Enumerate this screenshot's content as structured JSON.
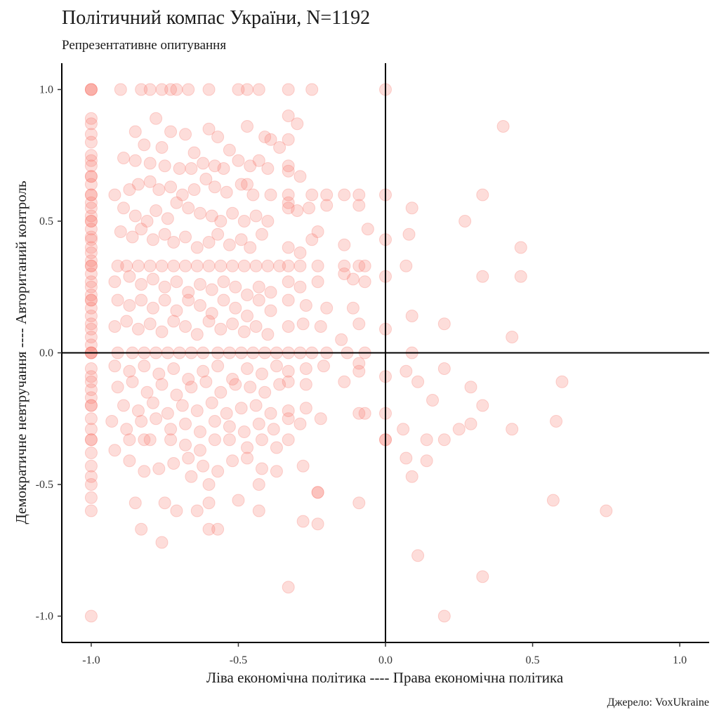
{
  "chart_data": {
    "type": "scatter",
    "title": "Політичний компас України, N=1192",
    "subtitle": "Репрезентативне опитування",
    "xlabel": "Ліва економічна політика ---- Права економічна політика",
    "ylabel": "Демократичне невтручання ---- Автоританий контроль",
    "caption": "Джерело: VoxUkraine",
    "xlim": [
      -1.1,
      1.1
    ],
    "ylim": [
      -1.1,
      1.1
    ],
    "x_ticks": [
      -1.0,
      -0.5,
      0.0,
      0.5,
      1.0
    ],
    "x_tick_labels": [
      "-1.0",
      "-0.5",
      "0.0",
      "0.5",
      "1.0"
    ],
    "y_ticks": [
      -1.0,
      -0.5,
      0.0,
      0.5,
      1.0
    ],
    "y_tick_labels": [
      "-1.0",
      "-0.5",
      "0.0",
      "0.5",
      "1.0"
    ],
    "grid": false,
    "reference_lines": {
      "x": 0,
      "y": 0
    },
    "point_color": "#F8766D",
    "point_opacity": 0.25,
    "points": [
      [
        -1.0,
        1.0
      ],
      [
        -1.0,
        1.0
      ],
      [
        -1.0,
        1.0
      ],
      [
        -1.0,
        0.89
      ],
      [
        -1.0,
        0.87
      ],
      [
        -1.0,
        0.83
      ],
      [
        -1.0,
        0.8
      ],
      [
        -1.0,
        0.75
      ],
      [
        -1.0,
        0.73
      ],
      [
        -1.0,
        0.71
      ],
      [
        -1.0,
        0.67
      ],
      [
        -1.0,
        0.67
      ],
      [
        -1.0,
        0.64
      ],
      [
        -1.0,
        0.6
      ],
      [
        -1.0,
        0.6
      ],
      [
        -1.0,
        0.57
      ],
      [
        -1.0,
        0.55
      ],
      [
        -1.0,
        0.52
      ],
      [
        -1.0,
        0.5
      ],
      [
        -1.0,
        0.5
      ],
      [
        -1.0,
        0.47
      ],
      [
        -1.0,
        0.44
      ],
      [
        -1.0,
        0.43
      ],
      [
        -1.0,
        0.4
      ],
      [
        -1.0,
        0.38
      ],
      [
        -1.0,
        0.35
      ],
      [
        -1.0,
        0.33
      ],
      [
        -1.0,
        0.33
      ],
      [
        -1.0,
        0.3
      ],
      [
        -1.0,
        0.27
      ],
      [
        -1.0,
        0.25
      ],
      [
        -1.0,
        0.22
      ],
      [
        -1.0,
        0.2
      ],
      [
        -1.0,
        0.2
      ],
      [
        -1.0,
        0.17
      ],
      [
        -1.0,
        0.14
      ],
      [
        -1.0,
        0.11
      ],
      [
        -1.0,
        0.09
      ],
      [
        -1.0,
        0.06
      ],
      [
        -1.0,
        0.03
      ],
      [
        -1.0,
        0.0
      ],
      [
        -1.0,
        0.0
      ],
      [
        -1.0,
        0.0
      ],
      [
        -1.0,
        -0.06
      ],
      [
        -1.0,
        -0.09
      ],
      [
        -1.0,
        -0.11
      ],
      [
        -1.0,
        -0.14
      ],
      [
        -1.0,
        -0.17
      ],
      [
        -1.0,
        -0.2
      ],
      [
        -1.0,
        -0.2
      ],
      [
        -1.0,
        -0.25
      ],
      [
        -1.0,
        -0.29
      ],
      [
        -1.0,
        -0.33
      ],
      [
        -1.0,
        -0.33
      ],
      [
        -1.0,
        -0.38
      ],
      [
        -1.0,
        -0.43
      ],
      [
        -1.0,
        -0.47
      ],
      [
        -1.0,
        -0.5
      ],
      [
        -1.0,
        -0.55
      ],
      [
        -1.0,
        -0.6
      ],
      [
        -1.0,
        -1.0
      ],
      [
        -0.9,
        1.0
      ],
      [
        -0.83,
        1.0
      ],
      [
        -0.8,
        1.0
      ],
      [
        -0.76,
        1.0
      ],
      [
        -0.73,
        1.0
      ],
      [
        -0.71,
        1.0
      ],
      [
        -0.67,
        1.0
      ],
      [
        -0.6,
        1.0
      ],
      [
        -0.5,
        1.0
      ],
      [
        -0.47,
        1.0
      ],
      [
        -0.43,
        1.0
      ],
      [
        -0.33,
        1.0
      ],
      [
        -0.25,
        1.0
      ],
      [
        0.0,
        1.0
      ],
      [
        -0.33,
        0.9
      ],
      [
        -0.78,
        0.89
      ],
      [
        -0.3,
        0.87
      ],
      [
        -0.47,
        0.86
      ],
      [
        -0.6,
        0.85
      ],
      [
        -0.85,
        0.84
      ],
      [
        -0.73,
        0.84
      ],
      [
        -0.68,
        0.83
      ],
      [
        -0.57,
        0.82
      ],
      [
        -0.33,
        0.81
      ],
      [
        -0.41,
        0.82
      ],
      [
        -0.39,
        0.81
      ],
      [
        -0.82,
        0.79
      ],
      [
        -0.76,
        0.78
      ],
      [
        -0.65,
        0.76
      ],
      [
        -0.53,
        0.77
      ],
      [
        -0.36,
        0.78
      ],
      [
        0.4,
        0.86
      ],
      [
        -0.89,
        0.74
      ],
      [
        -0.85,
        0.73
      ],
      [
        -0.8,
        0.72
      ],
      [
        -0.75,
        0.71
      ],
      [
        -0.7,
        0.7
      ],
      [
        -0.66,
        0.7
      ],
      [
        -0.62,
        0.72
      ],
      [
        -0.58,
        0.71
      ],
      [
        -0.55,
        0.7
      ],
      [
        -0.5,
        0.73
      ],
      [
        -0.46,
        0.71
      ],
      [
        -0.43,
        0.73
      ],
      [
        -0.4,
        0.7
      ],
      [
        -0.33,
        0.71
      ],
      [
        -0.33,
        0.69
      ],
      [
        -0.29,
        0.67
      ],
      [
        -0.92,
        0.6
      ],
      [
        -0.87,
        0.62
      ],
      [
        -0.84,
        0.64
      ],
      [
        -0.8,
        0.65
      ],
      [
        -0.77,
        0.62
      ],
      [
        -0.73,
        0.63
      ],
      [
        -0.69,
        0.6
      ],
      [
        -0.65,
        0.62
      ],
      [
        -0.61,
        0.66
      ],
      [
        -0.58,
        0.63
      ],
      [
        -0.54,
        0.61
      ],
      [
        -0.49,
        0.64
      ],
      [
        -0.47,
        0.64
      ],
      [
        -0.45,
        0.6
      ],
      [
        -0.39,
        0.6
      ],
      [
        -0.33,
        0.6
      ],
      [
        -0.25,
        0.6
      ],
      [
        -0.2,
        0.6
      ],
      [
        -0.14,
        0.6
      ],
      [
        -0.09,
        0.6
      ],
      [
        0.0,
        0.6
      ],
      [
        0.33,
        0.6
      ],
      [
        -0.89,
        0.55
      ],
      [
        -0.85,
        0.52
      ],
      [
        -0.81,
        0.5
      ],
      [
        -0.78,
        0.54
      ],
      [
        -0.74,
        0.51
      ],
      [
        -0.71,
        0.57
      ],
      [
        -0.67,
        0.55
      ],
      [
        -0.63,
        0.53
      ],
      [
        -0.59,
        0.52
      ],
      [
        -0.56,
        0.5
      ],
      [
        -0.52,
        0.53
      ],
      [
        -0.48,
        0.5
      ],
      [
        -0.44,
        0.52
      ],
      [
        -0.4,
        0.5
      ],
      [
        -0.33,
        0.57
      ],
      [
        -0.33,
        0.55
      ],
      [
        -0.3,
        0.54
      ],
      [
        -0.26,
        0.55
      ],
      [
        -0.2,
        0.56
      ],
      [
        -0.09,
        0.56
      ],
      [
        0.09,
        0.55
      ],
      [
        0.27,
        0.5
      ],
      [
        -0.9,
        0.46
      ],
      [
        -0.86,
        0.44
      ],
      [
        -0.83,
        0.47
      ],
      [
        -0.79,
        0.43
      ],
      [
        -0.75,
        0.45
      ],
      [
        -0.72,
        0.42
      ],
      [
        -0.68,
        0.44
      ],
      [
        -0.64,
        0.4
      ],
      [
        -0.6,
        0.42
      ],
      [
        -0.57,
        0.45
      ],
      [
        -0.53,
        0.41
      ],
      [
        -0.49,
        0.43
      ],
      [
        -0.46,
        0.4
      ],
      [
        -0.42,
        0.45
      ],
      [
        -0.33,
        0.4
      ],
      [
        -0.29,
        0.38
      ],
      [
        -0.25,
        0.43
      ],
      [
        -0.23,
        0.46
      ],
      [
        -0.14,
        0.41
      ],
      [
        -0.06,
        0.47
      ],
      [
        0.0,
        0.43
      ],
      [
        0.08,
        0.45
      ],
      [
        0.46,
        0.4
      ],
      [
        -0.91,
        0.33
      ],
      [
        -0.88,
        0.33
      ],
      [
        -0.84,
        0.33
      ],
      [
        -0.8,
        0.33
      ],
      [
        -0.76,
        0.33
      ],
      [
        -0.72,
        0.33
      ],
      [
        -0.68,
        0.33
      ],
      [
        -0.64,
        0.33
      ],
      [
        -0.6,
        0.33
      ],
      [
        -0.56,
        0.33
      ],
      [
        -0.52,
        0.33
      ],
      [
        -0.48,
        0.33
      ],
      [
        -0.44,
        0.33
      ],
      [
        -0.4,
        0.33
      ],
      [
        -0.36,
        0.33
      ],
      [
        -0.33,
        0.33
      ],
      [
        -0.29,
        0.33
      ],
      [
        -0.23,
        0.33
      ],
      [
        -0.14,
        0.33
      ],
      [
        -0.09,
        0.33
      ],
      [
        -0.07,
        0.33
      ],
      [
        0.07,
        0.33
      ],
      [
        -0.92,
        0.27
      ],
      [
        -0.87,
        0.29
      ],
      [
        -0.83,
        0.26
      ],
      [
        -0.79,
        0.28
      ],
      [
        -0.75,
        0.25
      ],
      [
        -0.71,
        0.27
      ],
      [
        -0.67,
        0.23
      ],
      [
        -0.63,
        0.26
      ],
      [
        -0.59,
        0.24
      ],
      [
        -0.55,
        0.27
      ],
      [
        -0.51,
        0.25
      ],
      [
        -0.47,
        0.22
      ],
      [
        -0.43,
        0.25
      ],
      [
        -0.39,
        0.23
      ],
      [
        -0.33,
        0.27
      ],
      [
        -0.29,
        0.25
      ],
      [
        -0.23,
        0.27
      ],
      [
        -0.14,
        0.3
      ],
      [
        -0.11,
        0.28
      ],
      [
        -0.07,
        0.27
      ],
      [
        0.0,
        0.29
      ],
      [
        0.33,
        0.29
      ],
      [
        0.46,
        0.29
      ],
      [
        -0.91,
        0.2
      ],
      [
        -0.87,
        0.18
      ],
      [
        -0.83,
        0.2
      ],
      [
        -0.79,
        0.17
      ],
      [
        -0.75,
        0.2
      ],
      [
        -0.71,
        0.16
      ],
      [
        -0.67,
        0.2
      ],
      [
        -0.63,
        0.18
      ],
      [
        -0.59,
        0.15
      ],
      [
        -0.55,
        0.2
      ],
      [
        -0.51,
        0.17
      ],
      [
        -0.47,
        0.14
      ],
      [
        -0.43,
        0.2
      ],
      [
        -0.39,
        0.16
      ],
      [
        -0.33,
        0.2
      ],
      [
        -0.27,
        0.18
      ],
      [
        -0.2,
        0.17
      ],
      [
        -0.11,
        0.17
      ],
      [
        0.09,
        0.14
      ],
      [
        -0.92,
        0.1
      ],
      [
        -0.88,
        0.12
      ],
      [
        -0.84,
        0.09
      ],
      [
        -0.8,
        0.11
      ],
      [
        -0.76,
        0.08
      ],
      [
        -0.72,
        0.12
      ],
      [
        -0.68,
        0.1
      ],
      [
        -0.64,
        0.07
      ],
      [
        -0.6,
        0.12
      ],
      [
        -0.56,
        0.09
      ],
      [
        -0.52,
        0.11
      ],
      [
        -0.48,
        0.08
      ],
      [
        -0.44,
        0.1
      ],
      [
        -0.4,
        0.07
      ],
      [
        -0.33,
        0.1
      ],
      [
        -0.28,
        0.11
      ],
      [
        -0.22,
        0.1
      ],
      [
        -0.15,
        0.05
      ],
      [
        -0.09,
        0.11
      ],
      [
        0.0,
        0.09
      ],
      [
        0.2,
        0.11
      ],
      [
        0.43,
        0.06
      ],
      [
        -0.91,
        0.0
      ],
      [
        -0.86,
        0.0
      ],
      [
        -0.82,
        0.0
      ],
      [
        -0.78,
        0.0
      ],
      [
        -0.74,
        0.0
      ],
      [
        -0.7,
        0.0
      ],
      [
        -0.66,
        0.0
      ],
      [
        -0.62,
        0.0
      ],
      [
        -0.57,
        0.0
      ],
      [
        -0.53,
        0.0
      ],
      [
        -0.49,
        0.0
      ],
      [
        -0.45,
        0.0
      ],
      [
        -0.41,
        0.0
      ],
      [
        -0.37,
        0.0
      ],
      [
        -0.33,
        0.0
      ],
      [
        -0.29,
        0.0
      ],
      [
        -0.25,
        0.0
      ],
      [
        -0.2,
        0.0
      ],
      [
        -0.13,
        0.0
      ],
      [
        -0.07,
        0.0
      ],
      [
        0.09,
        0.0
      ],
      [
        -0.92,
        -0.05
      ],
      [
        -0.87,
        -0.07
      ],
      [
        -0.82,
        -0.05
      ],
      [
        -0.77,
        -0.08
      ],
      [
        -0.72,
        -0.06
      ],
      [
        -0.67,
        -0.1
      ],
      [
        -0.62,
        -0.07
      ],
      [
        -0.57,
        -0.05
      ],
      [
        -0.52,
        -0.1
      ],
      [
        -0.47,
        -0.06
      ],
      [
        -0.42,
        -0.08
      ],
      [
        -0.37,
        -0.05
      ],
      [
        -0.33,
        -0.07
      ],
      [
        -0.27,
        -0.06
      ],
      [
        -0.21,
        -0.05
      ],
      [
        -0.14,
        -0.11
      ],
      [
        -0.09,
        -0.04
      ],
      [
        -0.09,
        -0.07
      ],
      [
        0.0,
        -0.09
      ],
      [
        0.07,
        -0.07
      ],
      [
        0.2,
        -0.06
      ],
      [
        0.11,
        -0.11
      ],
      [
        -0.91,
        -0.13
      ],
      [
        -0.86,
        -0.11
      ],
      [
        -0.81,
        -0.15
      ],
      [
        -0.76,
        -0.12
      ],
      [
        -0.71,
        -0.16
      ],
      [
        -0.66,
        -0.13
      ],
      [
        -0.61,
        -0.11
      ],
      [
        -0.56,
        -0.15
      ],
      [
        -0.51,
        -0.12
      ],
      [
        -0.46,
        -0.13
      ],
      [
        -0.41,
        -0.15
      ],
      [
        -0.36,
        -0.12
      ],
      [
        -0.33,
        -0.11
      ],
      [
        -0.27,
        -0.12
      ],
      [
        0.16,
        -0.18
      ],
      [
        0.29,
        -0.13
      ],
      [
        0.6,
        -0.11
      ],
      [
        -0.89,
        -0.2
      ],
      [
        -0.84,
        -0.22
      ],
      [
        -0.79,
        -0.19
      ],
      [
        -0.74,
        -0.23
      ],
      [
        -0.69,
        -0.2
      ],
      [
        -0.64,
        -0.22
      ],
      [
        -0.59,
        -0.19
      ],
      [
        -0.54,
        -0.23
      ],
      [
        -0.49,
        -0.21
      ],
      [
        -0.44,
        -0.2
      ],
      [
        -0.39,
        -0.23
      ],
      [
        -0.33,
        -0.22
      ],
      [
        -0.27,
        -0.21
      ],
      [
        -0.09,
        -0.23
      ],
      [
        -0.07,
        -0.23
      ],
      [
        0.0,
        -0.23
      ],
      [
        0.33,
        -0.2
      ],
      [
        -0.93,
        -0.26
      ],
      [
        -0.88,
        -0.29
      ],
      [
        -0.83,
        -0.26
      ],
      [
        -0.78,
        -0.25
      ],
      [
        -0.73,
        -0.29
      ],
      [
        -0.68,
        -0.27
      ],
      [
        -0.63,
        -0.3
      ],
      [
        -0.58,
        -0.26
      ],
      [
        -0.53,
        -0.28
      ],
      [
        -0.48,
        -0.3
      ],
      [
        -0.43,
        -0.27
      ],
      [
        -0.38,
        -0.29
      ],
      [
        -0.33,
        -0.25
      ],
      [
        -0.29,
        -0.27
      ],
      [
        -0.22,
        -0.25
      ],
      [
        0.06,
        -0.29
      ],
      [
        0.25,
        -0.29
      ],
      [
        0.29,
        -0.27
      ],
      [
        0.43,
        -0.29
      ],
      [
        0.58,
        -0.26
      ],
      [
        -0.92,
        -0.37
      ],
      [
        -0.87,
        -0.33
      ],
      [
        -0.82,
        -0.33
      ],
      [
        -0.8,
        -0.33
      ],
      [
        -0.73,
        -0.33
      ],
      [
        -0.68,
        -0.35
      ],
      [
        -0.63,
        -0.37
      ],
      [
        -0.58,
        -0.33
      ],
      [
        -0.53,
        -0.33
      ],
      [
        -0.47,
        -0.36
      ],
      [
        -0.42,
        -0.33
      ],
      [
        -0.37,
        -0.36
      ],
      [
        -0.33,
        -0.33
      ],
      [
        0.0,
        -0.33
      ],
      [
        0.0,
        -0.33
      ],
      [
        0.14,
        -0.33
      ],
      [
        0.2,
        -0.33
      ],
      [
        -0.87,
        -0.41
      ],
      [
        -0.82,
        -0.45
      ],
      [
        -0.77,
        -0.44
      ],
      [
        -0.72,
        -0.42
      ],
      [
        -0.67,
        -0.4
      ],
      [
        -0.62,
        -0.43
      ],
      [
        -0.57,
        -0.45
      ],
      [
        -0.52,
        -0.41
      ],
      [
        -0.47,
        -0.4
      ],
      [
        -0.42,
        -0.44
      ],
      [
        -0.37,
        -0.45
      ],
      [
        -0.28,
        -0.43
      ],
      [
        0.07,
        -0.4
      ],
      [
        0.09,
        -0.47
      ],
      [
        0.14,
        -0.41
      ],
      [
        -0.66,
        -0.47
      ],
      [
        -0.6,
        -0.5
      ],
      [
        -0.43,
        -0.5
      ],
      [
        -0.5,
        -0.56
      ],
      [
        -0.23,
        -0.53
      ],
      [
        -0.23,
        -0.53
      ],
      [
        -0.85,
        -0.57
      ],
      [
        -0.75,
        -0.57
      ],
      [
        -0.71,
        -0.6
      ],
      [
        -0.64,
        -0.6
      ],
      [
        -0.6,
        -0.57
      ],
      [
        -0.43,
        -0.6
      ],
      [
        -0.09,
        -0.57
      ],
      [
        0.57,
        -0.56
      ],
      [
        0.75,
        -0.6
      ],
      [
        -0.83,
        -0.67
      ],
      [
        -0.6,
        -0.67
      ],
      [
        -0.57,
        -0.67
      ],
      [
        -0.28,
        -0.64
      ],
      [
        -0.23,
        -0.65
      ],
      [
        -0.76,
        -0.72
      ],
      [
        0.11,
        -0.77
      ],
      [
        0.33,
        -0.85
      ],
      [
        -0.33,
        -0.89
      ],
      [
        0.2,
        -1.0
      ]
    ]
  }
}
